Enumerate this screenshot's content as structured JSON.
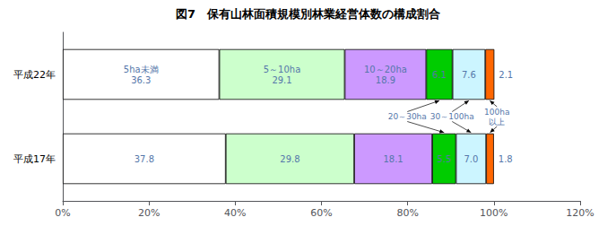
{
  "chart_data": {
    "type": "bar",
    "orientation": "horizontal",
    "stacked": true,
    "title": "図7　保有山林面積規模別林業経営体数の構成割合",
    "categories": [
      "平成22年",
      "平成17年"
    ],
    "series": [
      {
        "color": "#ffffff",
        "values": [
          36.3,
          37.8
        ],
        "value_labels": [
          "5ha未満\n36.3",
          "37.8"
        ]
      },
      {
        "color": "#ccffcc",
        "values": [
          29.1,
          29.8
        ],
        "value_labels": [
          "5～10ha\n29.1",
          "29.8"
        ]
      },
      {
        "color": "#cc99ff",
        "values": [
          18.9,
          18.1
        ],
        "value_labels": [
          "10～20ha\n18.9",
          "18.1"
        ]
      },
      {
        "color": "#00cc00",
        "values": [
          6.1,
          5.5
        ],
        "value_labels": [
          "6.1",
          "5.5"
        ]
      },
      {
        "color": "#ccf5ff",
        "values": [
          7.6,
          7.0
        ],
        "value_labels": [
          "7.6",
          "7.0"
        ]
      },
      {
        "color": "#ff6600",
        "values": [
          2.1,
          1.8
        ],
        "value_labels": [
          "2.1",
          "1.8"
        ]
      }
    ],
    "annotations": [
      "20～30ha",
      "30～100ha",
      "100ha\n以上"
    ],
    "xlim": [
      0,
      120
    ],
    "xticks": [
      {
        "value": 0,
        "label": "0%"
      },
      {
        "value": 20,
        "label": "20%"
      },
      {
        "value": 40,
        "label": "40%"
      },
      {
        "value": 60,
        "label": "60%"
      },
      {
        "value": 80,
        "label": "80%"
      },
      {
        "value": 100,
        "label": "100%"
      },
      {
        "value": 120,
        "label": "120%"
      }
    ],
    "grid": false,
    "data_labels": true
  }
}
